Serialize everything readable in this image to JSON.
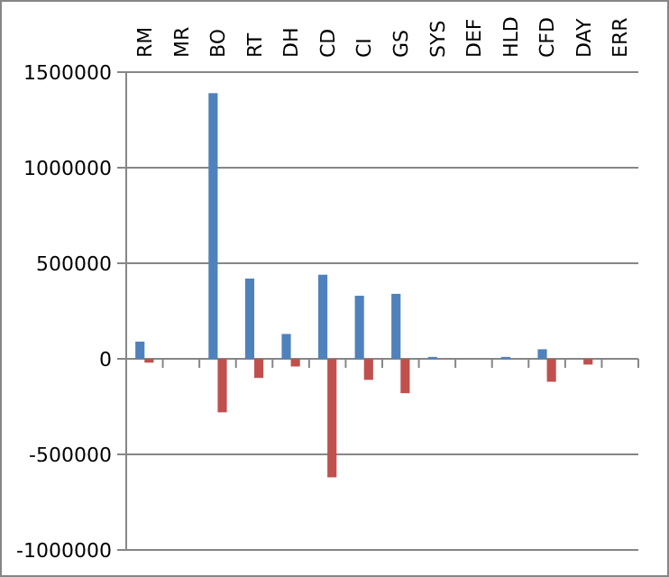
{
  "chart_data": {
    "type": "bar",
    "categories": [
      "RM",
      "MR",
      "BO",
      "RT",
      "DH",
      "CD",
      "CI",
      "GS",
      "SYS",
      "DEF",
      "HLD",
      "CFD",
      "DAY",
      "ERR"
    ],
    "series": [
      {
        "color": "#4f81bd",
        "values": [
          90000,
          null,
          1390000,
          420000,
          130000,
          440000,
          330000,
          340000,
          10000,
          null,
          10000,
          50000,
          null,
          null
        ]
      },
      {
        "color": "#c0504d",
        "values": [
          -20000,
          null,
          -280000,
          -100000,
          -40000,
          -620000,
          -110000,
          -180000,
          null,
          null,
          null,
          -120000,
          -30000,
          null
        ]
      }
    ],
    "ylim": [
      -1000000,
      1500000
    ],
    "yticks": [
      -1000000,
      -500000,
      0,
      500000,
      1000000,
      1500000
    ],
    "grid": "y"
  }
}
